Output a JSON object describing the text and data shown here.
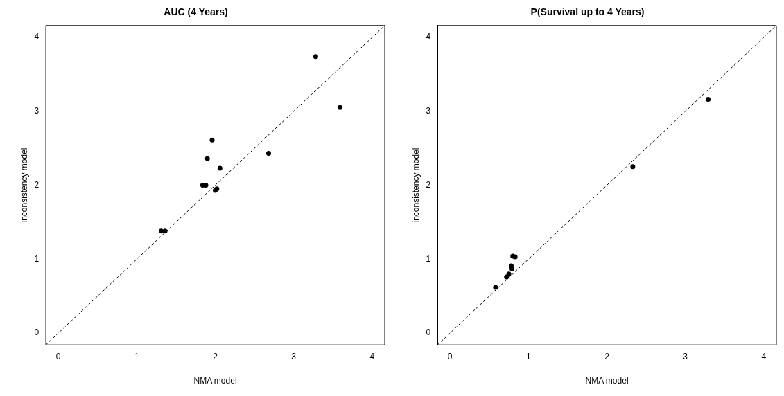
{
  "chart_data": [
    {
      "type": "scatter",
      "title": "AUC (4 Years)",
      "xlabel": "NMA model",
      "ylabel": "inconsistency model",
      "xlim": [
        -0.16,
        4.16
      ],
      "ylim": [
        -0.16,
        4.16
      ],
      "xticks": [
        0,
        1,
        2,
        3,
        4
      ],
      "yticks": [
        0,
        1,
        2,
        3,
        4
      ],
      "grid": false,
      "legend": false,
      "marker": "circle",
      "series": [
        {
          "color": "#000000",
          "x": [
            3.28,
            3.59,
            1.96,
            1.9,
            2.06,
            2.68,
            1.84,
            1.88,
            2.0,
            2.02,
            1.31,
            1.36
          ],
          "values": [
            3.74,
            3.05,
            2.61,
            2.36,
            2.23,
            2.43,
            2.0,
            2.0,
            1.93,
            1.95,
            1.38,
            1.38
          ]
        },
        {
          "type": "line",
          "line_style": "dashed",
          "marker": "none",
          "color": "#000000",
          "x": [
            -0.16,
            4.16
          ],
          "values": [
            -0.16,
            4.16
          ]
        }
      ]
    },
    {
      "type": "scatter",
      "title": "P(Survival up to 4 Years)",
      "xlabel": "NMA model",
      "ylabel": "inconsistency model",
      "xlim": [
        -0.16,
        4.16
      ],
      "ylim": [
        -0.16,
        4.16
      ],
      "xticks": [
        0,
        1,
        2,
        3,
        4
      ],
      "yticks": [
        0,
        1,
        2,
        3,
        4
      ],
      "grid": false,
      "legend": false,
      "marker": "circle",
      "series": [
        {
          "color": "#000000",
          "x": [
            3.29,
            2.33,
            0.8,
            0.83,
            0.78,
            0.79,
            0.75,
            0.72,
            0.58
          ],
          "values": [
            3.16,
            2.25,
            1.04,
            1.03,
            0.91,
            0.87,
            0.8,
            0.76,
            0.62
          ]
        },
        {
          "type": "line",
          "line_style": "dashed",
          "marker": "none",
          "color": "#000000",
          "x": [
            -0.16,
            4.16
          ],
          "values": [
            -0.16,
            4.16
          ]
        }
      ]
    }
  ]
}
